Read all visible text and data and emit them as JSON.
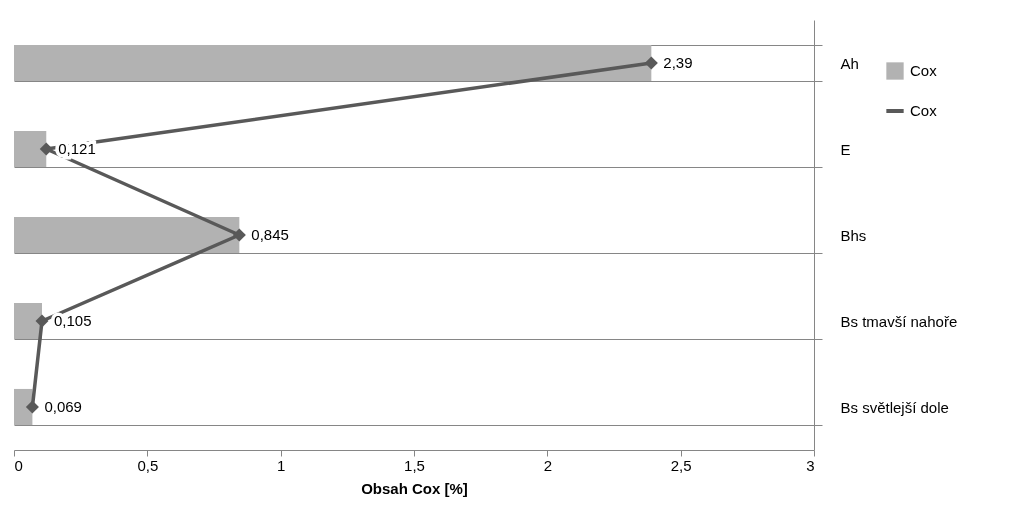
{
  "chart_data": {
    "type": "bar",
    "orientation": "horizontal",
    "xlabel": "Obsah Cox [%]",
    "categories": [
      "Ah",
      "E",
      "Bhs",
      "Bs tmavší nahoře",
      "Bs světlejší dole"
    ],
    "xlim": [
      0,
      3
    ],
    "xticks": [
      0,
      {
        "value": 0.5,
        "label": "0,5"
      },
      1,
      {
        "value": 1.5,
        "label": "1,5"
      },
      2,
      {
        "value": 2.5,
        "label": "2,5"
      },
      3
    ],
    "grid": "y",
    "legend": "right",
    "series": [
      {
        "name": "Cox",
        "color": "#b2b2b2",
        "values": [
          2.39,
          0.121,
          0.845,
          0.105,
          0.069
        ],
        "value_labels": [
          "2,39",
          "0,121",
          "0,845",
          "0,105",
          "0,069"
        ]
      },
      {
        "name": "Cox",
        "type": "line",
        "color": "#595959",
        "marker": "diamond",
        "line_style": "solid",
        "values": [
          2.39,
          0.121,
          0.845,
          0.105,
          0.069
        ]
      }
    ]
  }
}
